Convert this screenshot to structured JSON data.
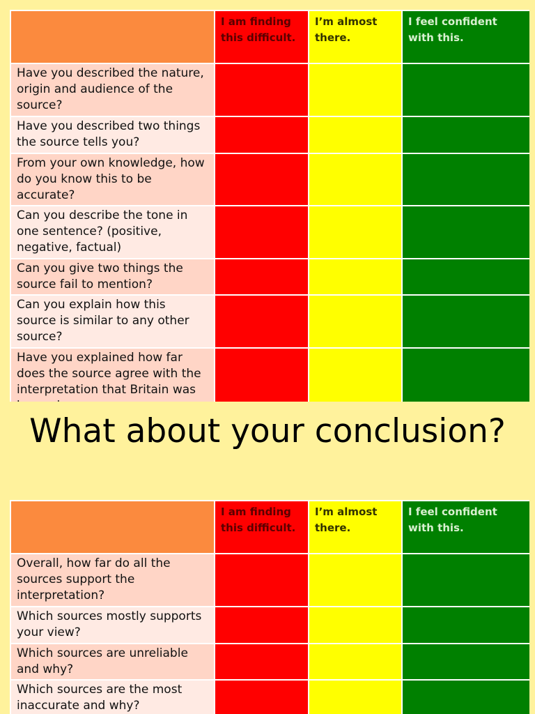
{
  "headers": {
    "difficult": "I am finding this difficult.",
    "almost": "I’m almost there.",
    "confident": "I feel confident with this."
  },
  "table1": {
    "questions": [
      "Have you described the nature, origin and audience of the source?",
      "Have you described two things the source tells you?",
      "From your own knowledge, how do you know this to be accurate?",
      "Can you describe the tone in one sentence? (positive, negative, factual)",
      "Can you give two things  the source fail to mention?",
      "Can you explain how this source is similar to any other source?",
      "Have you explained how far does the source agree with the interpretation that Britain was becoming more"
    ]
  },
  "title": "What about your conclusion?",
  "table2": {
    "questions": [
      "Overall, how far do all the sources support the interpretation?",
      "Which sources mostly supports your view?",
      "Which sources are unreliable and why?",
      "Which sources are the most inaccurate and why?"
    ]
  }
}
